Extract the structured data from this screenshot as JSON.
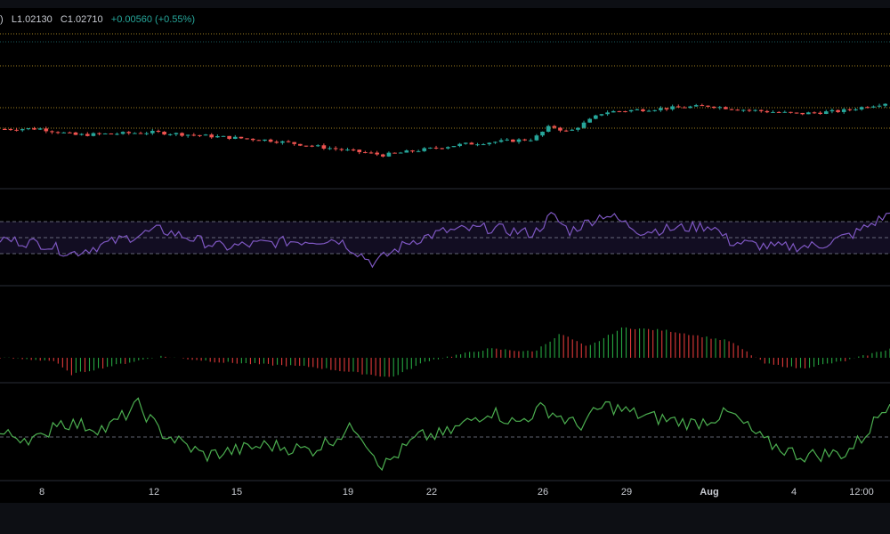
{
  "ohlc_header": {
    "open_fragment": ")",
    "low": "L1.02130",
    "close": "C1.02710",
    "change": "+0.00560 (+0.55%)"
  },
  "colors": {
    "background": "#000000",
    "up": "#26a69a",
    "down": "#ef5350",
    "fib_line": "#c9a227",
    "rsi_line": "#7e57c2",
    "rsi_band": "#120d22",
    "osc_line": "#4caf50",
    "hist_up": "#26a641",
    "hist_down": "#e03a3a",
    "separator": "#2a2e39"
  },
  "x_axis_labels": [
    {
      "text": "8",
      "bold": false
    },
    {
      "text": "12",
      "bold": false
    },
    {
      "text": "15",
      "bold": false
    },
    {
      "text": "19",
      "bold": false
    },
    {
      "text": "22",
      "bold": false
    },
    {
      "text": "26",
      "bold": false
    },
    {
      "text": "29",
      "bold": false
    },
    {
      "text": "Aug",
      "bold": true
    },
    {
      "text": "4",
      "bold": false
    },
    {
      "text": "12:00",
      "bold": false
    }
  ],
  "chart_data": [
    {
      "type": "candlestick",
      "title": "",
      "ylabel": "",
      "x": [
        "8",
        "12",
        "15",
        "19",
        "22",
        "26",
        "29",
        "Aug",
        "4",
        "12:00"
      ],
      "last_close": 1.0271,
      "low": 1.0213,
      "horizontal_levels": 5,
      "trend": [
        {
          "x": 0,
          "v": 1.0
        },
        {
          "x": 0.04,
          "v": 1.01
        },
        {
          "x": 0.08,
          "v": 0.85
        },
        {
          "x": 0.17,
          "v": 0.92
        },
        {
          "x": 0.3,
          "v": 0.72
        },
        {
          "x": 0.43,
          "v": 0.35
        },
        {
          "x": 0.52,
          "v": 0.62
        },
        {
          "x": 0.6,
          "v": 0.75
        },
        {
          "x": 0.62,
          "v": 1.08
        },
        {
          "x": 0.64,
          "v": 0.92
        },
        {
          "x": 0.68,
          "v": 1.42
        },
        {
          "x": 0.72,
          "v": 1.48
        },
        {
          "x": 0.8,
          "v": 1.58
        },
        {
          "x": 0.83,
          "v": 1.5
        },
        {
          "x": 0.9,
          "v": 1.38
        },
        {
          "x": 0.95,
          "v": 1.45
        },
        {
          "x": 1.0,
          "v": 1.65
        }
      ]
    },
    {
      "type": "line",
      "name": "",
      "range": [
        0,
        100
      ],
      "levels": [
        70,
        50,
        30
      ],
      "trend": [
        {
          "x": 0,
          "v": 48
        },
        {
          "x": 0.05,
          "v": 42
        },
        {
          "x": 0.08,
          "v": 30
        },
        {
          "x": 0.15,
          "v": 52
        },
        {
          "x": 0.18,
          "v": 60
        },
        {
          "x": 0.25,
          "v": 38
        },
        {
          "x": 0.32,
          "v": 45
        },
        {
          "x": 0.38,
          "v": 48
        },
        {
          "x": 0.42,
          "v": 18
        },
        {
          "x": 0.46,
          "v": 45
        },
        {
          "x": 0.5,
          "v": 58
        },
        {
          "x": 0.55,
          "v": 62
        },
        {
          "x": 0.6,
          "v": 55
        },
        {
          "x": 0.62,
          "v": 78
        },
        {
          "x": 0.64,
          "v": 58
        },
        {
          "x": 0.68,
          "v": 80
        },
        {
          "x": 0.72,
          "v": 58
        },
        {
          "x": 0.8,
          "v": 65
        },
        {
          "x": 0.82,
          "v": 45
        },
        {
          "x": 0.87,
          "v": 38
        },
        {
          "x": 0.92,
          "v": 40
        },
        {
          "x": 0.96,
          "v": 55
        },
        {
          "x": 1.0,
          "v": 80
        }
      ]
    },
    {
      "type": "bar",
      "name": "",
      "zero_line": true,
      "trend": [
        {
          "x": 0,
          "v": 0
        },
        {
          "x": 0.06,
          "v": -0.1
        },
        {
          "x": 0.08,
          "v": -0.55
        },
        {
          "x": 0.12,
          "v": -0.3
        },
        {
          "x": 0.18,
          "v": 0.05
        },
        {
          "x": 0.25,
          "v": -0.15
        },
        {
          "x": 0.35,
          "v": -0.3
        },
        {
          "x": 0.44,
          "v": -0.65
        },
        {
          "x": 0.48,
          "v": -0.1
        },
        {
          "x": 0.55,
          "v": 0.3
        },
        {
          "x": 0.6,
          "v": 0.2
        },
        {
          "x": 0.63,
          "v": 0.8
        },
        {
          "x": 0.66,
          "v": 0.35
        },
        {
          "x": 0.7,
          "v": 1.0
        },
        {
          "x": 0.75,
          "v": 0.9
        },
        {
          "x": 0.82,
          "v": 0.55
        },
        {
          "x": 0.86,
          "v": -0.2
        },
        {
          "x": 0.9,
          "v": -0.35
        },
        {
          "x": 0.95,
          "v": -0.1
        },
        {
          "x": 1.0,
          "v": 0.3
        }
      ]
    },
    {
      "type": "line",
      "name": "",
      "level": 0,
      "trend": [
        {
          "x": 0,
          "v": 0.1
        },
        {
          "x": 0.05,
          "v": -0.1
        },
        {
          "x": 0.06,
          "v": 0.6
        },
        {
          "x": 0.12,
          "v": 0.3
        },
        {
          "x": 0.155,
          "v": 1.2
        },
        {
          "x": 0.18,
          "v": 0.2
        },
        {
          "x": 0.23,
          "v": -0.7
        },
        {
          "x": 0.3,
          "v": -0.3
        },
        {
          "x": 0.35,
          "v": -0.5
        },
        {
          "x": 0.4,
          "v": 0.4
        },
        {
          "x": 0.43,
          "v": -1.1
        },
        {
          "x": 0.47,
          "v": 0.0
        },
        {
          "x": 0.5,
          "v": 0.1
        },
        {
          "x": 0.55,
          "v": 1.0
        },
        {
          "x": 0.58,
          "v": 0.5
        },
        {
          "x": 0.61,
          "v": 1.1
        },
        {
          "x": 0.65,
          "v": 0.4
        },
        {
          "x": 0.68,
          "v": 1.2
        },
        {
          "x": 0.72,
          "v": 0.8
        },
        {
          "x": 0.78,
          "v": 0.5
        },
        {
          "x": 0.82,
          "v": 0.9
        },
        {
          "x": 0.86,
          "v": -0.2
        },
        {
          "x": 0.9,
          "v": -0.7
        },
        {
          "x": 0.95,
          "v": -0.6
        },
        {
          "x": 0.97,
          "v": 0.0
        },
        {
          "x": 1.0,
          "v": 1.4
        }
      ]
    }
  ]
}
